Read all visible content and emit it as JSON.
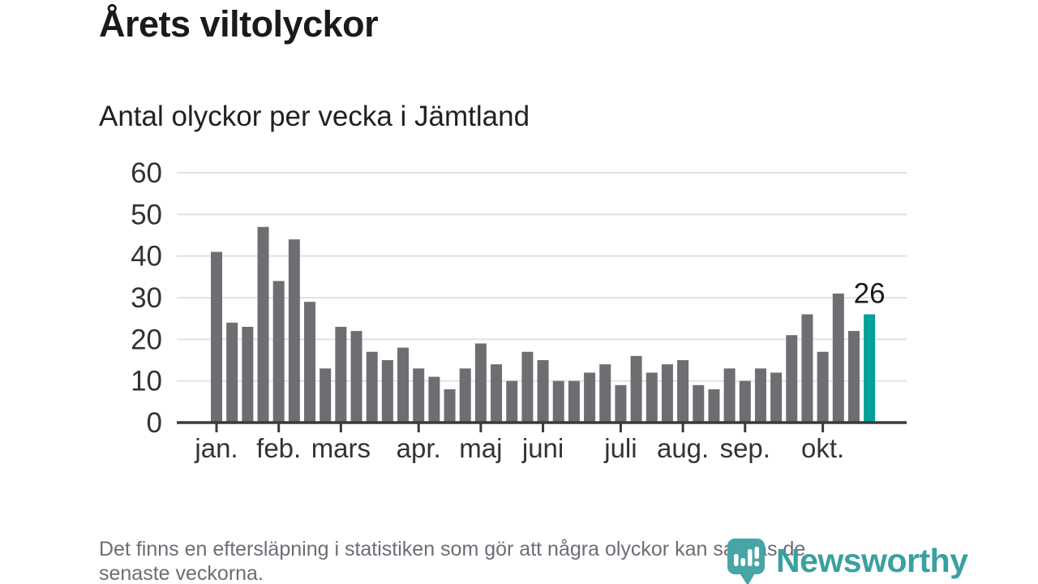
{
  "header": {
    "title": "Årets viltolyckor",
    "subtitle": "Antal olyckor per vecka i Jämtland"
  },
  "chart_data": {
    "type": "bar",
    "title": "Årets viltolyckor",
    "subtitle": "Antal olyckor per vecka i Jämtland",
    "x_unit": "vecka (week of year)",
    "values": [
      41,
      24,
      23,
      47,
      34,
      44,
      29,
      13,
      23,
      22,
      17,
      15,
      18,
      13,
      11,
      8,
      13,
      19,
      14,
      10,
      17,
      15,
      10,
      10,
      12,
      14,
      9,
      16,
      12,
      14,
      15,
      9,
      8,
      13,
      10,
      13,
      12,
      21,
      26,
      17,
      31,
      22,
      26
    ],
    "highlight_index": 42,
    "highlight_value_label": "26",
    "ylim": [
      0,
      60
    ],
    "yticks": [
      0,
      10,
      20,
      30,
      40,
      50,
      60
    ],
    "grid": true,
    "legend": "none",
    "month_ticks": [
      {
        "label": "jan.",
        "week_index": 0
      },
      {
        "label": "feb.",
        "week_index": 4
      },
      {
        "label": "mars",
        "week_index": 8
      },
      {
        "label": "apr.",
        "week_index": 13
      },
      {
        "label": "maj",
        "week_index": 17
      },
      {
        "label": "juni",
        "week_index": 21
      },
      {
        "label": "juli",
        "week_index": 26
      },
      {
        "label": "aug.",
        "week_index": 30
      },
      {
        "label": "sep.",
        "week_index": 34
      },
      {
        "label": "okt.",
        "week_index": 39
      }
    ],
    "colors": {
      "bar": "#6e6e72",
      "highlight": "#00a099",
      "gridline": "#e2e2e2",
      "axis_line": "#3a3a3a",
      "tick_text": "#333333",
      "annotation_text": "#1a1a1a"
    }
  },
  "footnote": {
    "line1": "Det finns en eftersläpning i statistiken som gör att några olyckor kan saknas de",
    "line2": "senaste veckorna."
  },
  "logo": {
    "text": "Newsworthy",
    "text_color": "#3aa0a0",
    "icon": "newsworthy-speech-bubble-barchart-icon",
    "icon_color": "#46a6a5"
  }
}
